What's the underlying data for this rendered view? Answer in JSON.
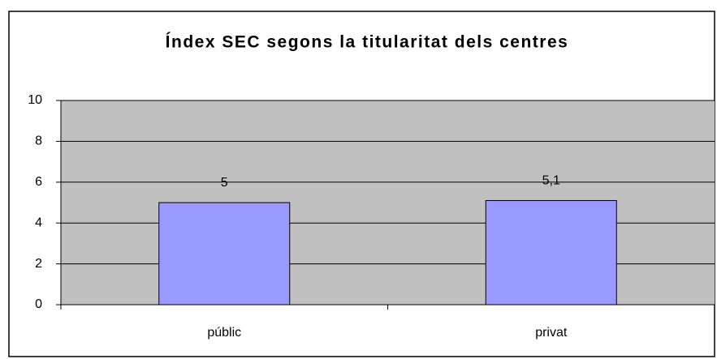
{
  "chart_data": {
    "type": "bar",
    "title": "Índex SEC segons la titularitat dels centres",
    "categories": [
      "públic",
      "privat"
    ],
    "values": [
      5,
      5.1
    ],
    "value_labels": [
      "5",
      "5,1"
    ],
    "color": "#9999ff",
    "ylim": [
      0,
      10
    ],
    "yticks": [
      0,
      2,
      4,
      6,
      8,
      10
    ],
    "grid": true
  }
}
